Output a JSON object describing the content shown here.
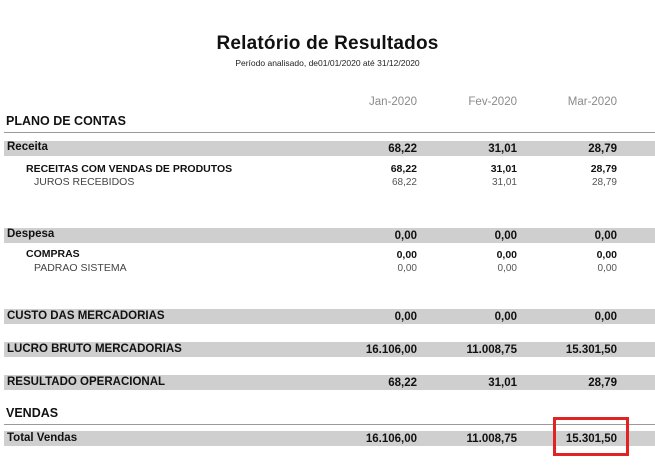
{
  "report": {
    "title": "Relatório de Resultados",
    "period": "Período analisado, de01/01/2020  até  31/12/2020"
  },
  "columns": {
    "months": [
      "Jan-2020",
      "Fev-2020",
      "Mar-2020"
    ],
    "plano_label": "PLANO DE CONTAS"
  },
  "receita": {
    "label": "Receita",
    "values": [
      "68,22",
      "31,01",
      "28,79"
    ],
    "group": {
      "label": "RECEITAS COM VENDAS DE PRODUTOS",
      "values": [
        "68,22",
        "31,01",
        "28,79"
      ]
    },
    "item": {
      "label": "JUROS RECEBIDOS",
      "values": [
        "68,22",
        "31,01",
        "28,79"
      ]
    }
  },
  "despesa": {
    "label": "Despesa",
    "values": [
      "0,00",
      "0,00",
      "0,00"
    ],
    "group": {
      "label": "COMPRAS",
      "values": [
        "0,00",
        "0,00",
        "0,00"
      ]
    },
    "item": {
      "label": "PADRAO SISTEMA",
      "values": [
        "0,00",
        "0,00",
        "0,00"
      ]
    }
  },
  "custo": {
    "label": "CUSTO DAS MERCADORIAS",
    "values": [
      "0,00",
      "0,00",
      "0,00"
    ]
  },
  "lucro": {
    "label": "LUCRO BRUTO MERCADORIAS",
    "values": [
      "16.106,00",
      "11.008,75",
      "15.301,50"
    ]
  },
  "resultado": {
    "label": "RESULTADO OPERACIONAL",
    "values": [
      "68,22",
      "31,01",
      "28,79"
    ]
  },
  "vendas": {
    "section_label": "VENDAS",
    "total_label": "Total Vendas",
    "values": [
      "16.106,00",
      "11.008,75",
      "15.301,50"
    ]
  },
  "highlight_color": "#e02424",
  "band_color": "#cfcfcf"
}
